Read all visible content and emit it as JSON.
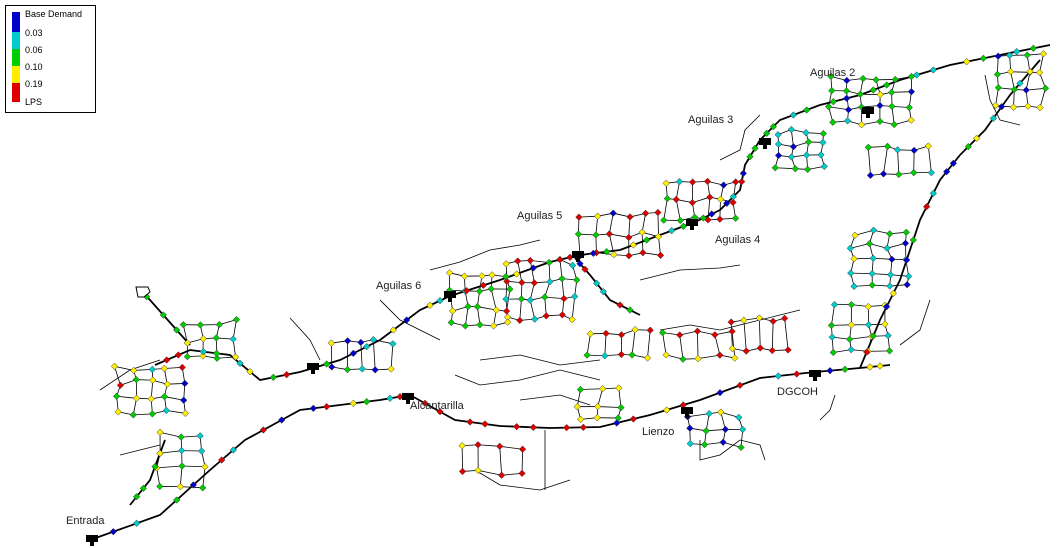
{
  "legend": {
    "title": "Base Demand",
    "unit": "LPS",
    "thresholds": [
      "0.03",
      "0.06",
      "0.10",
      "0.19"
    ],
    "colors": [
      "#0000cc",
      "#00cccc",
      "#00cc00",
      "#ffee00",
      "#dd0000"
    ]
  },
  "labels": {
    "aguilas2": "Aguilas 2",
    "aguilas3": "Aguilas 3",
    "aguilas4": "Aguilas 4",
    "aguilas5": "Aguilas 5",
    "aguilas6": "Aguilas 6",
    "alcantarilla": "Alcantarilla",
    "lienzo": "Lienzo",
    "dgcoh": "DGCOH",
    "entrada": "Entrada"
  },
  "colors": {
    "pipe": "#000000",
    "background": "#ffffff",
    "node_outline": "#333333"
  }
}
